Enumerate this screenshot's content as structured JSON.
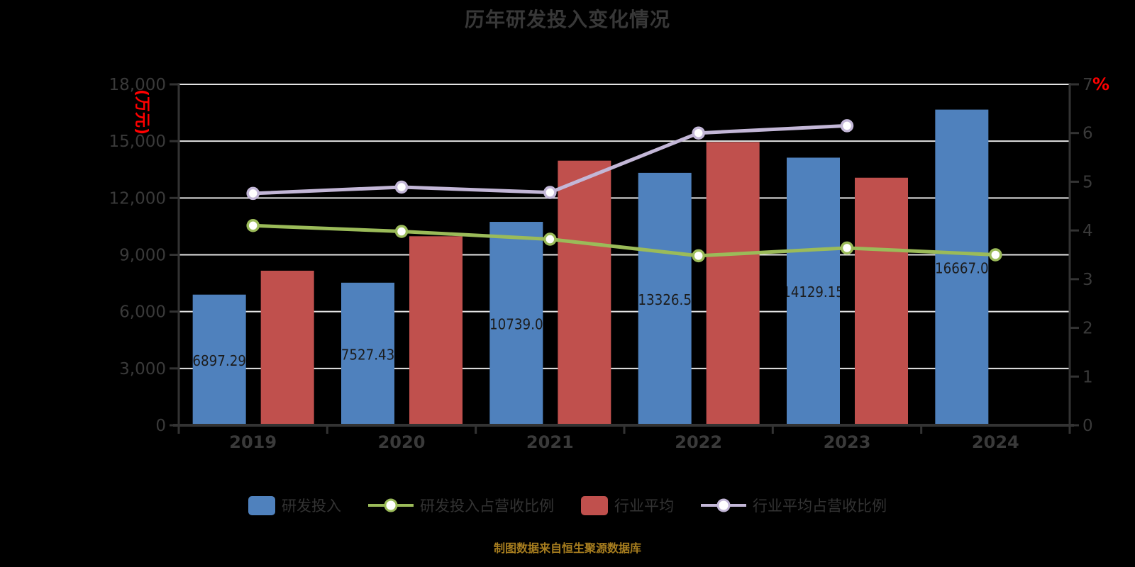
{
  "title": "历年研发投入变化情况",
  "source_note": "制图数据来自恒生聚源数据库",
  "colors": {
    "background": "#000000",
    "bar_blue": "#4F81BD",
    "bar_red": "#C0504D",
    "line_green": "#9BBB59",
    "line_purple": "#C3B7D7",
    "marker_fill": "#FFFFFF",
    "gridline": "#E3E3E3",
    "axis": "#333333",
    "tick_label": "#3A3A3A",
    "bar_label": "#1C1C1C",
    "unit_label": "#FF0000",
    "title_text": "#383838",
    "legend_text": "#333333",
    "source_text": "#A87E1F"
  },
  "legend": [
    {
      "label": "研发投入",
      "type": "bar",
      "color": "#4F81BD"
    },
    {
      "label": "研发投入占营收比例",
      "type": "line",
      "color": "#9BBB59"
    },
    {
      "label": "行业平均",
      "type": "bar",
      "color": "#C0504D"
    },
    {
      "label": "行业平均占营收比例",
      "type": "line",
      "color": "#C3B7D7"
    }
  ],
  "chart_data": {
    "type": "bar",
    "subtype": "grouped bars with two overlay lines (dual axis)",
    "title": "历年研发投入变化情况",
    "categories": [
      "2019",
      "2020",
      "2021",
      "2022",
      "2023",
      "2024"
    ],
    "left_axis": {
      "unit": "(万元)",
      "min": 0,
      "max": 18000,
      "step": 3000,
      "tick_labels": [
        "0",
        "3,000",
        "6,000",
        "9,000",
        "12,000",
        "15,000",
        "18,000"
      ]
    },
    "right_axis": {
      "unit": "%",
      "min": 0,
      "max": 7,
      "step": 1,
      "tick_labels": [
        "0",
        "1",
        "2",
        "3",
        "4",
        "5",
        "6",
        "7"
      ]
    },
    "series": [
      {
        "name": "研发投入",
        "type": "bar",
        "axis": "left",
        "color": "#4F81BD",
        "values": [
          6897.29,
          7527.43,
          10739.0,
          13326.5,
          14129.15,
          16667.0
        ],
        "labels": [
          "6897.29",
          "7527.43",
          "10739.0",
          "13326.5",
          "14129.15",
          "16667.0"
        ],
        "labels_shown": true,
        "labels_note": "labels are horizontally clipped to bar width in the pixels"
      },
      {
        "name": "行业平均",
        "type": "bar",
        "axis": "left",
        "color": "#C0504D",
        "values": [
          8160,
          9980,
          13970,
          14950,
          13070,
          null
        ],
        "labels_shown": false
      },
      {
        "name": "研发投入占营收比例",
        "type": "line",
        "axis": "right",
        "color": "#9BBB59",
        "marker": "circle-white-fill",
        "values": [
          4.1,
          3.98,
          3.82,
          3.48,
          3.64,
          3.5
        ]
      },
      {
        "name": "行业平均占营收比例",
        "type": "line",
        "axis": "right",
        "color": "#C3B7D7",
        "marker": "circle-white-fill",
        "values": [
          4.76,
          4.89,
          4.78,
          6.0,
          6.15,
          null
        ]
      }
    ],
    "grid": "horizontal gridlines on",
    "legend_position": "bottom-center"
  }
}
